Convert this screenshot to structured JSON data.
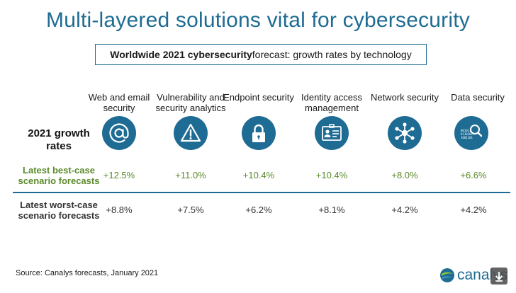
{
  "title": "Multi-layered solutions vital for cybersecurity",
  "subtitle_bold": "Worldwide 2021 cybersecurity",
  "subtitle_rest": " forecast: growth rates by technology",
  "row_labels": {
    "growth": "2021 growth rates",
    "best": "Latest best-case scenario forecasts",
    "worst": "Latest worst-case scenario forecasts"
  },
  "source": "Source: Canalys forecasts, January 2021",
  "logo_text": "canalys",
  "colors": {
    "accent": "#1e6b93",
    "best": "#5a8a2a",
    "worst": "#333333"
  },
  "chart_data": {
    "type": "table",
    "columns": [
      {
        "label": "Web and email security",
        "icon": "at-sign-icon"
      },
      {
        "label": "Vulnerability and security analytics",
        "icon": "warning-icon"
      },
      {
        "label": "Endpoint security",
        "icon": "padlock-icon"
      },
      {
        "label": "Identity access management",
        "icon": "id-card-icon"
      },
      {
        "label": "Network security",
        "icon": "network-hub-icon"
      },
      {
        "label": "Data security",
        "icon": "binary-magnifier-icon"
      }
    ],
    "rows": [
      {
        "label": "Latest best-case scenario forecasts",
        "values": [
          "+12.5%",
          "+11.0%",
          "+10.4%",
          "+10.4%",
          "+8.0%",
          "+6.6%"
        ]
      },
      {
        "label": "Latest worst-case scenario forecasts",
        "values": [
          "+8.8%",
          "+7.5%",
          "+6.2%",
          "+8.1%",
          "+4.2%",
          "+4.2%"
        ]
      }
    ]
  }
}
